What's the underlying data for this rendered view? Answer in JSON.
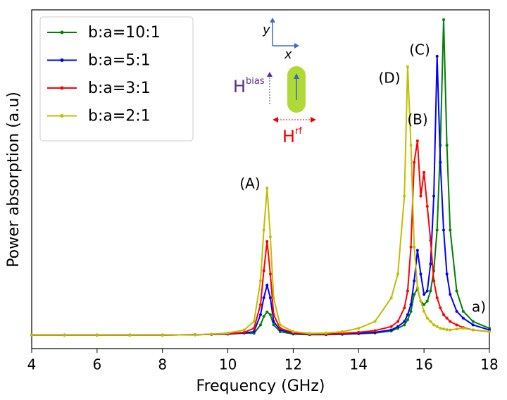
{
  "chart_data": {
    "type": "line",
    "xlabel": "Frequency (GHz)",
    "ylabel": "Power absorption (a.u)",
    "xlim": [
      4,
      18
    ],
    "xticks": [
      4,
      6,
      8,
      10,
      12,
      14,
      16,
      18
    ],
    "ylim": [
      0,
      1
    ],
    "legend": "upper left",
    "x": [
      4,
      5,
      6,
      7,
      8,
      9,
      9.5,
      10,
      10.5,
      10.8,
      11,
      11.1,
      11.2,
      11.3,
      11.4,
      11.6,
      12,
      12.5,
      13,
      13.5,
      14,
      14.5,
      15,
      15.2,
      15.4,
      15.5,
      15.6,
      15.7,
      15.8,
      15.9,
      16,
      16.1,
      16.2,
      16.3,
      16.4,
      16.5,
      16.6,
      16.7,
      16.8,
      17,
      17.2,
      17.5,
      18
    ],
    "series": [
      {
        "name": "b:a=10:1",
        "color": "#008000",
        "values": [
          0.04,
          0.04,
          0.04,
          0.04,
          0.04,
          0.041,
          0.042,
          0.043,
          0.046,
          0.045,
          0.07,
          0.095,
          0.108,
          0.1,
          0.07,
          0.05,
          0.043,
          0.041,
          0.041,
          0.042,
          0.044,
          0.046,
          0.052,
          0.06,
          0.07,
          0.085,
          0.11,
          0.16,
          0.177,
          0.14,
          0.13,
          0.14,
          0.17,
          0.23,
          0.35,
          0.6,
          0.971,
          0.6,
          0.35,
          0.17,
          0.11,
          0.08,
          0.06
        ]
      },
      {
        "name": "b:a=5:1",
        "color": "#0000ff",
        "values": [
          0.04,
          0.04,
          0.04,
          0.04,
          0.04,
          0.041,
          0.042,
          0.043,
          0.046,
          0.05,
          0.1,
          0.15,
          0.187,
          0.15,
          0.08,
          0.055,
          0.045,
          0.042,
          0.042,
          0.043,
          0.045,
          0.048,
          0.055,
          0.065,
          0.08,
          0.1,
          0.13,
          0.2,
          0.29,
          0.22,
          0.16,
          0.17,
          0.25,
          0.45,
          0.863,
          0.55,
          0.35,
          0.22,
          0.16,
          0.11,
          0.09,
          0.07,
          0.055
        ]
      },
      {
        "name": "b:a=3:1",
        "color": "#ff0000",
        "values": [
          0.04,
          0.04,
          0.04,
          0.04,
          0.04,
          0.041,
          0.042,
          0.044,
          0.048,
          0.06,
          0.13,
          0.23,
          0.316,
          0.22,
          0.1,
          0.06,
          0.047,
          0.043,
          0.043,
          0.045,
          0.048,
          0.053,
          0.065,
          0.08,
          0.12,
          0.17,
          0.3,
          0.55,
          0.613,
          0.45,
          0.52,
          0.42,
          0.32,
          0.2,
          0.15,
          0.12,
          0.1,
          0.09,
          0.08,
          0.07,
          0.062,
          0.055,
          0.05
        ]
      },
      {
        "name": "b:a=2:1",
        "color": "#bfbf00",
        "values": [
          0.04,
          0.04,
          0.04,
          0.04,
          0.04,
          0.041,
          0.043,
          0.046,
          0.055,
          0.08,
          0.2,
          0.35,
          0.474,
          0.33,
          0.15,
          0.07,
          0.05,
          0.045,
          0.046,
          0.05,
          0.06,
          0.08,
          0.15,
          0.22,
          0.45,
          0.832,
          0.6,
          0.3,
          0.18,
          0.14,
          0.11,
          0.09,
          0.08,
          0.07,
          0.065,
          0.06,
          0.058,
          0.056,
          0.055,
          0.058,
          0.06,
          0.055,
          0.05
        ]
      }
    ],
    "annotations": [
      "(A)",
      "(B)",
      "(C)",
      "(D)",
      "a)"
    ],
    "inset": {
      "y_axis": "y",
      "x_axis": "x",
      "h_bias": "H",
      "bias": "bias",
      "h_rf": "H",
      "rf": "rf"
    }
  }
}
